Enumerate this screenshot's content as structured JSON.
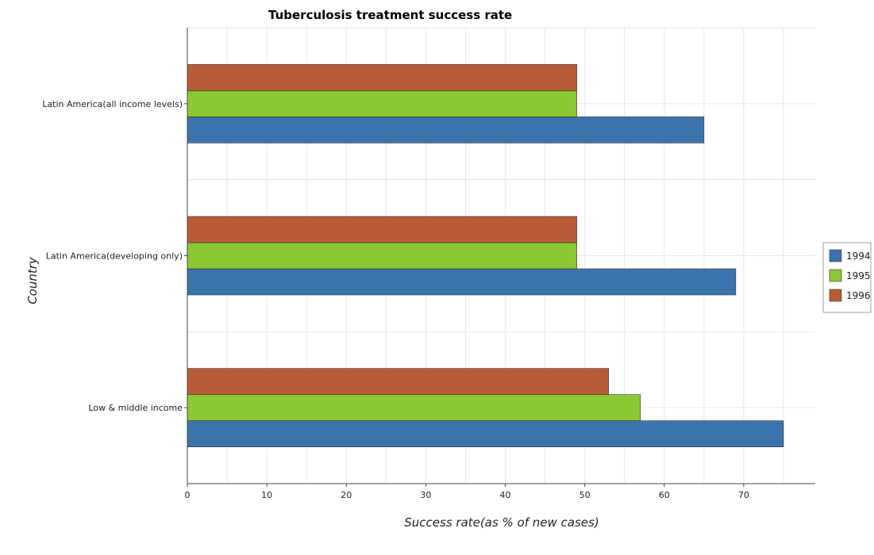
{
  "chart_data": {
    "type": "bar",
    "orientation": "horizontal",
    "title": "Tuberculosis treatment success rate",
    "xlabel": "Success rate(as % of new cases)",
    "ylabel": "Country",
    "categories": [
      "Latin America(all income levels)",
      "Latin America(developing only)",
      "Low & middle income"
    ],
    "series": [
      {
        "name": "1994",
        "color": "#3b74ad",
        "values": [
          65,
          69,
          75
        ]
      },
      {
        "name": "1995",
        "color": "#8cc832",
        "values": [
          49,
          49,
          57
        ]
      },
      {
        "name": "1996",
        "color": "#b85c38",
        "values": [
          49,
          49,
          53
        ]
      }
    ],
    "xlim": [
      0,
      79
    ],
    "xticks": [
      0,
      10,
      20,
      30,
      40,
      50,
      60,
      70
    ],
    "grid": true,
    "legend_position": "right"
  }
}
